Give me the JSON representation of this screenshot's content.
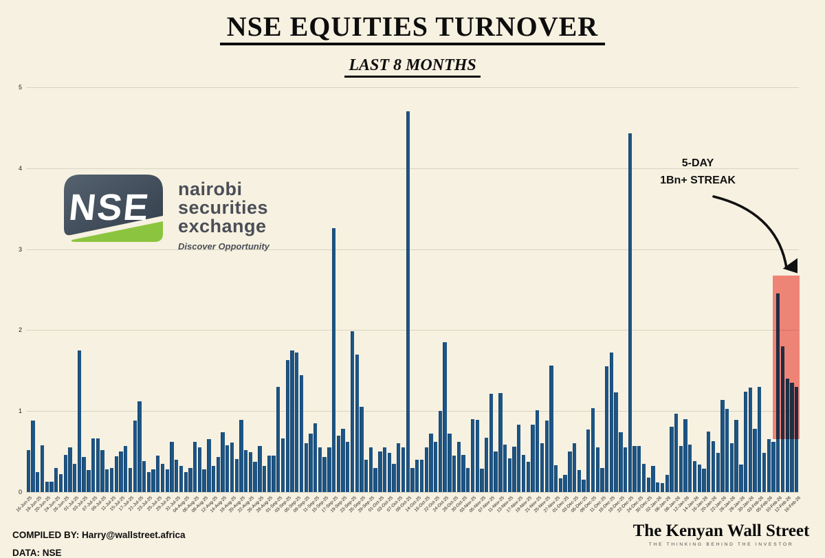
{
  "title": "NSE EQUITIES TURNOVER",
  "subtitle": "LAST 8 MONTHS",
  "annotation": {
    "line1": "5-DAY",
    "line2": "1Bn+ STREAK"
  },
  "footer": {
    "compiled_by": "COMPILED BY: Harry@wallstreet.africa",
    "data_source": "DATA: NSE"
  },
  "nse_logo": {
    "mark_text": "NSE",
    "name_lines": [
      "nairobi",
      "securities",
      "exchange"
    ],
    "tagline": "Discover Opportunity"
  },
  "kws_logo": {
    "name": "The Kenyan Wall Street",
    "tagline": "THE THINKING BEHIND THE INVESTOR"
  },
  "colors": {
    "background": "#f7f1e1",
    "bar": "#1d5586",
    "gridline": "#d8d2c0",
    "highlight": "#f4726b",
    "nse_badge": "#3d4c5c",
    "nse_green": "#8bc53f",
    "text": "#0d0d0d"
  },
  "chart_data": {
    "type": "bar",
    "title": "NSE EQUITIES TURNOVER",
    "subtitle": "LAST 8 MONTHS",
    "xlabel": "",
    "ylabel": "",
    "ylim": [
      0,
      5
    ],
    "yticks": [
      0,
      1,
      2,
      3,
      4,
      5
    ],
    "grid": "horizontal",
    "x_tick_every": 2,
    "x_tick_labels": [
      "16-Jun-25",
      "18-Jun-25",
      "20-Jun-25",
      "24-Jun-25",
      "26-Jun-25",
      "01-Jul-25",
      "03-Jul-25",
      "07-Jul-25",
      "09-Jul-25",
      "11-Jul-25",
      "15-Jul-25",
      "17-Jul-25",
      "21-Jul-25",
      "23-Jul-25",
      "25-Jul-25",
      "29-Jul-25",
      "31-Jul-25",
      "04-Aug-25",
      "06-Aug-25",
      "08-Aug-25",
      "12-Aug-25",
      "14-Aug-25",
      "18-Aug-25",
      "20-Aug-25",
      "22-Aug-25",
      "26-Aug-25",
      "28-Aug-25",
      "01-Sep-25",
      "03-Sep-25",
      "05-Sep-25",
      "09-Sep-25",
      "11-Sep-25",
      "15-Sep-25",
      "17-Sep-25",
      "19-Sep-25",
      "23-Sep-25",
      "25-Sep-25",
      "29-Sep-25",
      "01-Oct-25",
      "03-Oct-25",
      "07-Oct-25",
      "09-Oct-25",
      "14-Oct-25",
      "16-Oct-25",
      "22-Oct-25",
      "24-Oct-25",
      "28-Oct-25",
      "30-Oct-25",
      "03-Nov-25",
      "05-Nov-25",
      "07-Nov-25",
      "11-Nov-25",
      "13-Nov-25",
      "17-Nov-25",
      "19-Nov-25",
      "21-Nov-25",
      "25-Nov-25",
      "27-Nov-25",
      "01-Dec-25",
      "03-Dec-25",
      "05-Dec-25",
      "09-Dec-25",
      "11-Dec-25",
      "16-Dec-25",
      "18-Dec-25",
      "22-Dec-25",
      "24-Dec-25",
      "30-Dec-25",
      "02-Jan-26",
      "06-Jan-26",
      "08-Jan-26",
      "12-Jan-26",
      "14-Jan-26",
      "16-Jan-26",
      "20-Jan-26",
      "22-Jan-26",
      "26-Jan-26",
      "28-Jan-26",
      "30-Jan-26",
      "03-Feb-26",
      "05-Feb-26",
      "10-Feb-26",
      "12-Feb-26",
      "16-Feb-26"
    ],
    "values": [
      0.52,
      0.88,
      0.25,
      0.58,
      0.13,
      0.13,
      0.3,
      0.22,
      0.46,
      0.55,
      0.35,
      1.75,
      0.43,
      0.27,
      0.66,
      0.66,
      0.52,
      0.28,
      0.3,
      0.44,
      0.5,
      0.57,
      0.3,
      0.88,
      1.12,
      0.38,
      0.25,
      0.28,
      0.45,
      0.35,
      0.28,
      0.62,
      0.4,
      0.32,
      0.25,
      0.3,
      0.62,
      0.55,
      0.28,
      0.65,
      0.32,
      0.43,
      0.74,
      0.58,
      0.61,
      0.41,
      0.89,
      0.52,
      0.49,
      0.37,
      0.57,
      0.32,
      0.45,
      0.45,
      1.3,
      0.66,
      1.63,
      1.75,
      1.72,
      1.44,
      0.6,
      0.72,
      0.85,
      0.55,
      0.43,
      0.55,
      3.26,
      0.7,
      0.78,
      0.62,
      1.99,
      1.7,
      1.05,
      0.4,
      0.55,
      0.3,
      0.5,
      0.55,
      0.48,
      0.35,
      0.6,
      0.55,
      4.7,
      0.3,
      0.4,
      0.4,
      0.55,
      0.72,
      0.62,
      1.0,
      1.85,
      0.72,
      0.45,
      0.62,
      0.46,
      0.3,
      0.9,
      0.89,
      0.29,
      0.67,
      1.21,
      0.5,
      1.22,
      0.59,
      0.42,
      0.56,
      0.83,
      0.46,
      0.37,
      0.83,
      1.01,
      0.6,
      0.88,
      1.56,
      0.33,
      0.17,
      0.21,
      0.5,
      0.6,
      0.27,
      0.15,
      0.77,
      1.04,
      0.55,
      0.3,
      1.55,
      1.72,
      1.23,
      0.74,
      0.55,
      4.43,
      0.57,
      0.57,
      0.35,
      0.18,
      0.32,
      0.12,
      0.11,
      0.21,
      0.81,
      0.97,
      0.57,
      0.9,
      0.59,
      0.38,
      0.34,
      0.29,
      0.75,
      0.63,
      0.48,
      1.14,
      1.03,
      0.6,
      0.89,
      0.34,
      1.24,
      1.29,
      0.78,
      1.3,
      0.48,
      0.65,
      0.62,
      2.45,
      1.8,
      1.4,
      1.35,
      1.3
    ],
    "highlight": {
      "label": "5-DAY 1Bn+ STREAK",
      "start_index": 162,
      "end_index": 166,
      "y_top": 2.67,
      "y_bottom": 0.65,
      "color": "#f4726b"
    },
    "legend": "none"
  }
}
